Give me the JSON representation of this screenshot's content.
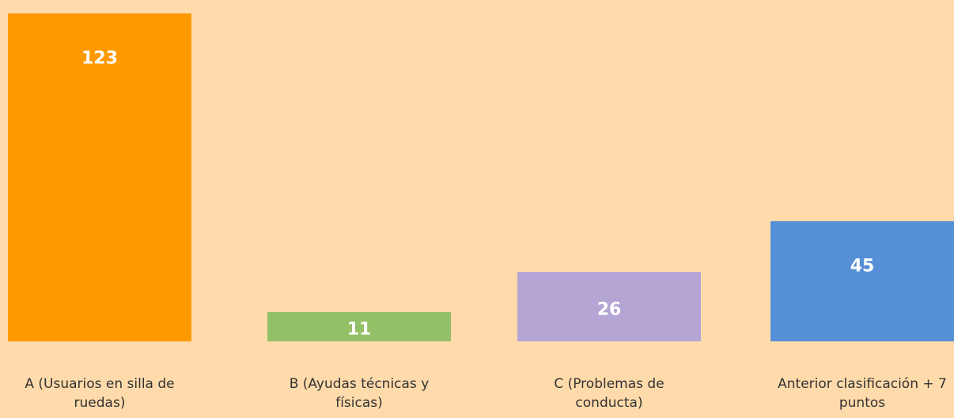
{
  "chart_data": {
    "type": "bar",
    "categories": [
      "A (Usuarios en silla de ruedas)",
      "B (Ayudas técnicas y físicas)",
      "C (Problemas de conducta)",
      "Anterior clasificación + 7 puntos"
    ],
    "values": [
      123,
      11,
      26,
      45
    ],
    "colors": [
      "#ff9900",
      "#93bf66",
      "#b4a5d4",
      "#5590d6"
    ],
    "ylim": [
      0,
      125
    ]
  }
}
